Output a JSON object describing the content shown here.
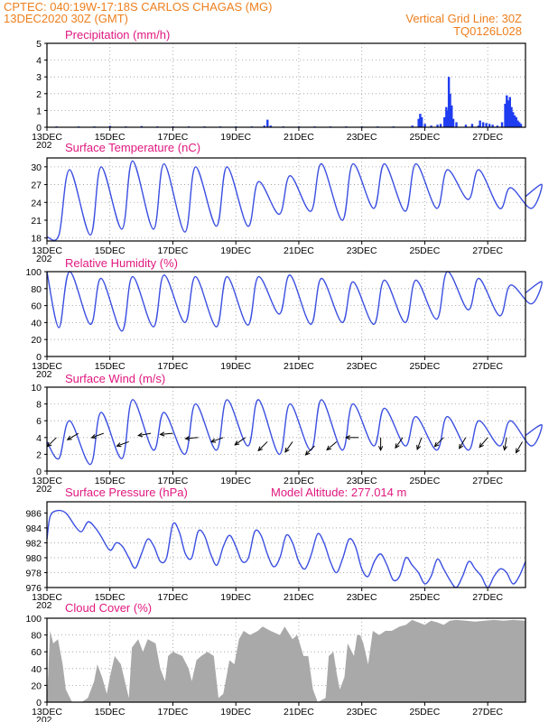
{
  "header": {
    "line1": "CPTEC:  040:19W-17:18S   CARLOS CHAGAS (MG)",
    "line2": "13DEC2020 30Z (GMT)",
    "grid_note": "Vertical Grid Line: 30Z",
    "code": "TQ0126L028"
  },
  "colors": {
    "header": "#ee7f1d",
    "title": "#e0187f",
    "line": "#3b4fe0",
    "bar": "#1f3cf0",
    "cloud": "#a9a9a9",
    "arrow": "#000000"
  },
  "x_axis": {
    "range_days": [
      13,
      28.2
    ],
    "ticks": [
      {
        "day": 13,
        "label": "13DEC"
      },
      {
        "day": 15,
        "label": "15DEC"
      },
      {
        "day": 17,
        "label": "17DEC"
      },
      {
        "day": 19,
        "label": "19DEC"
      },
      {
        "day": 21,
        "label": "21DEC"
      },
      {
        "day": 23,
        "label": "23DEC"
      },
      {
        "day": 25,
        "label": "25DEC"
      },
      {
        "day": 27,
        "label": "27DEC"
      }
    ],
    "year_fragment": "202"
  },
  "chart_data": [
    {
      "id": "precip",
      "type": "bar",
      "title": "Precipitation  (mm/h)",
      "ylim": [
        0,
        5
      ],
      "yticks": [
        0,
        1,
        2,
        3,
        4,
        5
      ],
      "grid": true,
      "x": [
        13.3,
        14.0,
        14.5,
        15.0,
        15.5,
        16.0,
        16.5,
        17.0,
        17.5,
        18.0,
        18.5,
        19.0,
        19.5,
        19.9,
        20.0,
        20.1,
        20.5,
        21.0,
        21.5,
        22.0,
        22.5,
        23.0,
        23.5,
        24.0,
        24.6,
        24.8,
        24.85,
        24.9,
        25.0,
        25.2,
        25.4,
        25.5,
        25.62,
        25.68,
        25.72,
        25.76,
        25.8,
        25.85,
        25.9,
        26.0,
        26.3,
        26.5,
        26.7,
        26.75,
        26.85,
        26.95,
        27.05,
        27.15,
        27.3,
        27.45,
        27.55,
        27.6,
        27.65,
        27.7,
        27.75,
        27.8,
        27.85,
        27.9,
        27.95,
        28.0,
        28.05
      ],
      "values": [
        0.05,
        0.05,
        0.05,
        0.08,
        0.05,
        0.07,
        0.05,
        0.05,
        0.05,
        0.05,
        0.05,
        0.05,
        0.05,
        0.1,
        0.45,
        0.1,
        0.05,
        0.05,
        0.05,
        0.05,
        0.05,
        0.05,
        0.05,
        0.05,
        0.1,
        0.5,
        0.8,
        0.6,
        0.2,
        0.1,
        0.15,
        0.2,
        0.6,
        1.2,
        1.0,
        3.0,
        2.0,
        1.3,
        0.5,
        0.3,
        0.15,
        0.2,
        0.1,
        0.4,
        0.3,
        0.25,
        0.2,
        0.15,
        0.1,
        0.3,
        1.4,
        1.9,
        1.6,
        1.8,
        1.2,
        0.9,
        0.7,
        0.6,
        0.4,
        0.3,
        0.2
      ]
    },
    {
      "id": "temp",
      "type": "line",
      "title": "Surface Temperature (nC)",
      "ylim": [
        17.5,
        31.5
      ],
      "yticks": [
        18,
        21,
        24,
        27,
        30
      ],
      "grid": true,
      "daily_min": [
        18.5,
        18.5,
        19.5,
        19.5,
        19.0,
        20.0,
        20.0,
        22.0,
        22.5,
        21.0,
        23.0,
        22.5,
        23.0,
        24.5,
        23.0,
        23.0
      ],
      "daily_max": [
        29.5,
        30.0,
        31.0,
        30.5,
        30.0,
        30.0,
        27.5,
        28.5,
        30.5,
        30.5,
        30.5,
        30.5,
        29.5,
        29.5,
        26.5,
        27.0
      ],
      "start": 18.2
    },
    {
      "id": "rh",
      "type": "line",
      "title": "Relative Humidity (%)",
      "ylim": [
        0,
        100
      ],
      "yticks": [
        0,
        20,
        40,
        60,
        80,
        100
      ],
      "grid": true,
      "daily_min": [
        34,
        38,
        30,
        35,
        40,
        35,
        37,
        50,
        38,
        40,
        38,
        40,
        44,
        55,
        48,
        62
      ],
      "daily_max": [
        100,
        92,
        94,
        96,
        94,
        94,
        94,
        96,
        92,
        88,
        90,
        90,
        100,
        92,
        84,
        88
      ],
      "start": 100
    },
    {
      "id": "wind",
      "type": "line",
      "title": "Surface Wind (m/s)",
      "ylim": [
        0,
        10
      ],
      "yticks": [
        0,
        2,
        4,
        6,
        8,
        10
      ],
      "grid": true,
      "daily_min": [
        1.5,
        0.8,
        1.5,
        2.5,
        2.0,
        2.5,
        3.0,
        2.0,
        2.5,
        2.5,
        3.0,
        3.0,
        2.5,
        2.5,
        3.0,
        3.0
      ],
      "daily_max": [
        6.0,
        7.0,
        8.5,
        7.0,
        8.0,
        8.5,
        8.5,
        8.0,
        8.5,
        8.0,
        7.5,
        6.5,
        6.5,
        6.0,
        6.0,
        5.5
      ],
      "start": 3.5,
      "arrows": [
        {
          "day": 13.3,
          "speed": 4.0,
          "dir": 225
        },
        {
          "day": 14.0,
          "speed": 4.5,
          "dir": 240
        },
        {
          "day": 14.8,
          "speed": 4.5,
          "dir": 250
        },
        {
          "day": 15.6,
          "speed": 3.5,
          "dir": 250
        },
        {
          "day": 16.3,
          "speed": 4.5,
          "dir": 260
        },
        {
          "day": 17.0,
          "speed": 4.5,
          "dir": 265
        },
        {
          "day": 17.8,
          "speed": 4.0,
          "dir": 265
        },
        {
          "day": 18.6,
          "speed": 4.0,
          "dir": 250
        },
        {
          "day": 19.3,
          "speed": 4.0,
          "dir": 235
        },
        {
          "day": 20.0,
          "speed": 3.5,
          "dir": 225
        },
        {
          "day": 20.8,
          "speed": 3.5,
          "dir": 215
        },
        {
          "day": 21.5,
          "speed": 3.0,
          "dir": 225
        },
        {
          "day": 22.2,
          "speed": 3.5,
          "dir": 230
        },
        {
          "day": 22.9,
          "speed": 4.0,
          "dir": 270
        },
        {
          "day": 23.6,
          "speed": 4.0,
          "dir": 180
        },
        {
          "day": 24.3,
          "speed": 4.0,
          "dir": 215
        },
        {
          "day": 24.9,
          "speed": 4.0,
          "dir": 200
        },
        {
          "day": 25.6,
          "speed": 4.0,
          "dir": 225
        },
        {
          "day": 26.3,
          "speed": 4.0,
          "dir": 210
        },
        {
          "day": 27.0,
          "speed": 4.0,
          "dir": 220
        },
        {
          "day": 27.6,
          "speed": 4.0,
          "dir": 190
        },
        {
          "day": 28.1,
          "speed": 3.5,
          "dir": 210
        }
      ]
    },
    {
      "id": "pressure",
      "type": "line",
      "title": "Surface Pressure (hPa)",
      "subtitle": "Model Altitude: 277.014 m",
      "ylim": [
        976,
        987.5
      ],
      "yticks": [
        976,
        978,
        980,
        982,
        984,
        986
      ],
      "grid": true,
      "series_points": [
        [
          13.0,
          982.5
        ],
        [
          13.1,
          985.5
        ],
        [
          13.3,
          986.3
        ],
        [
          13.6,
          986.0
        ],
        [
          13.9,
          984.2
        ],
        [
          14.1,
          983.5
        ],
        [
          14.3,
          984.8
        ],
        [
          14.5,
          984.2
        ],
        [
          14.7,
          983.0
        ],
        [
          15.0,
          981.0
        ],
        [
          15.2,
          982.0
        ],
        [
          15.4,
          981.5
        ],
        [
          15.6,
          980.0
        ],
        [
          15.8,
          978.6
        ],
        [
          16.0,
          980.5
        ],
        [
          16.2,
          982.5
        ],
        [
          16.4,
          981.5
        ],
        [
          16.6,
          979.5
        ],
        [
          16.8,
          980.0
        ],
        [
          17.0,
          984.5
        ],
        [
          17.2,
          983.5
        ],
        [
          17.4,
          980.5
        ],
        [
          17.6,
          980.0
        ],
        [
          17.8,
          983.5
        ],
        [
          18.0,
          983.0
        ],
        [
          18.2,
          980.5
        ],
        [
          18.4,
          979.0
        ],
        [
          18.6,
          981.5
        ],
        [
          18.8,
          983.0
        ],
        [
          19.0,
          981.5
        ],
        [
          19.2,
          979.5
        ],
        [
          19.4,
          980.0
        ],
        [
          19.6,
          983.5
        ],
        [
          19.8,
          983.0
        ],
        [
          20.0,
          980.5
        ],
        [
          20.2,
          978.8
        ],
        [
          20.4,
          980.0
        ],
        [
          20.6,
          983.0
        ],
        [
          20.8,
          982.0
        ],
        [
          21.0,
          979.5
        ],
        [
          21.2,
          978.5
        ],
        [
          21.4,
          980.5
        ],
        [
          21.6,
          983.2
        ],
        [
          21.8,
          982.0
        ],
        [
          22.0,
          979.5
        ],
        [
          22.2,
          978.0
        ],
        [
          22.4,
          980.0
        ],
        [
          22.6,
          982.5
        ],
        [
          22.8,
          981.5
        ],
        [
          23.0,
          978.5
        ],
        [
          23.2,
          977.5
        ],
        [
          23.4,
          979.5
        ],
        [
          23.6,
          980.5
        ],
        [
          23.8,
          979.0
        ],
        [
          24.0,
          977.0
        ],
        [
          24.2,
          977.5
        ],
        [
          24.4,
          980.0
        ],
        [
          24.6,
          979.0
        ],
        [
          24.8,
          978.0
        ],
        [
          25.0,
          976.5
        ],
        [
          25.2,
          977.5
        ],
        [
          25.4,
          979.8
        ],
        [
          25.6,
          978.5
        ],
        [
          25.8,
          977.0
        ],
        [
          26.0,
          976.0
        ],
        [
          26.2,
          977.5
        ],
        [
          26.4,
          979.5
        ],
        [
          26.6,
          978.5
        ],
        [
          26.8,
          977.5
        ],
        [
          27.0,
          976.0
        ],
        [
          27.2,
          977.5
        ],
        [
          27.4,
          978.5
        ],
        [
          27.6,
          978.0
        ],
        [
          27.8,
          976.5
        ],
        [
          28.0,
          977.5
        ],
        [
          28.2,
          979.5
        ]
      ]
    },
    {
      "id": "cloud",
      "type": "area",
      "title": "Cloud Cover (%)",
      "ylim": [
        0,
        100
      ],
      "yticks": [
        0,
        20,
        40,
        60,
        80,
        100
      ],
      "grid": true,
      "series_points": [
        [
          13.0,
          0
        ],
        [
          13.1,
          85
        ],
        [
          13.2,
          70
        ],
        [
          13.35,
          75
        ],
        [
          13.5,
          45
        ],
        [
          13.6,
          15
        ],
        [
          13.8,
          0
        ],
        [
          14.1,
          0
        ],
        [
          14.3,
          5
        ],
        [
          14.5,
          25
        ],
        [
          14.6,
          45
        ],
        [
          14.75,
          30
        ],
        [
          14.9,
          10
        ],
        [
          15.0,
          30
        ],
        [
          15.15,
          55
        ],
        [
          15.35,
          45
        ],
        [
          15.6,
          5
        ],
        [
          15.7,
          65
        ],
        [
          15.9,
          75
        ],
        [
          16.05,
          60
        ],
        [
          16.2,
          75
        ],
        [
          16.45,
          70
        ],
        [
          16.6,
          40
        ],
        [
          16.75,
          25
        ],
        [
          16.85,
          55
        ],
        [
          17.0,
          60
        ],
        [
          17.3,
          55
        ],
        [
          17.5,
          40
        ],
        [
          17.6,
          25
        ],
        [
          17.75,
          50
        ],
        [
          17.9,
          55
        ],
        [
          18.1,
          60
        ],
        [
          18.3,
          55
        ],
        [
          18.45,
          5
        ],
        [
          18.6,
          10
        ],
        [
          18.8,
          50
        ],
        [
          18.95,
          45
        ],
        [
          19.1,
          75
        ],
        [
          19.25,
          85
        ],
        [
          19.45,
          80
        ],
        [
          19.7,
          85
        ],
        [
          19.85,
          90
        ],
        [
          20.1,
          85
        ],
        [
          20.4,
          80
        ],
        [
          20.55,
          90
        ],
        [
          20.8,
          75
        ],
        [
          20.95,
          80
        ],
        [
          21.15,
          55
        ],
        [
          21.3,
          55
        ],
        [
          21.45,
          15
        ],
        [
          21.6,
          0
        ],
        [
          21.85,
          5
        ],
        [
          21.95,
          55
        ],
        [
          22.1,
          60
        ],
        [
          22.2,
          35
        ],
        [
          22.3,
          15
        ],
        [
          22.45,
          30
        ],
        [
          22.55,
          70
        ],
        [
          22.75,
          55
        ],
        [
          22.85,
          80
        ],
        [
          22.95,
          80
        ],
        [
          23.05,
          70
        ],
        [
          23.2,
          45
        ],
        [
          23.35,
          85
        ],
        [
          23.55,
          80
        ],
        [
          23.75,
          85
        ],
        [
          23.95,
          85
        ],
        [
          24.2,
          90
        ],
        [
          24.4,
          92
        ],
        [
          24.6,
          98
        ],
        [
          24.8,
          95
        ],
        [
          25.0,
          92
        ],
        [
          25.2,
          97
        ],
        [
          25.4,
          95
        ],
        [
          25.6,
          92
        ],
        [
          25.8,
          97
        ],
        [
          26.0,
          98
        ],
        [
          26.3,
          97
        ],
        [
          26.6,
          96
        ],
        [
          26.9,
          97
        ],
        [
          27.2,
          98
        ],
        [
          27.5,
          97
        ],
        [
          27.8,
          98
        ],
        [
          28.2,
          97
        ]
      ]
    }
  ]
}
